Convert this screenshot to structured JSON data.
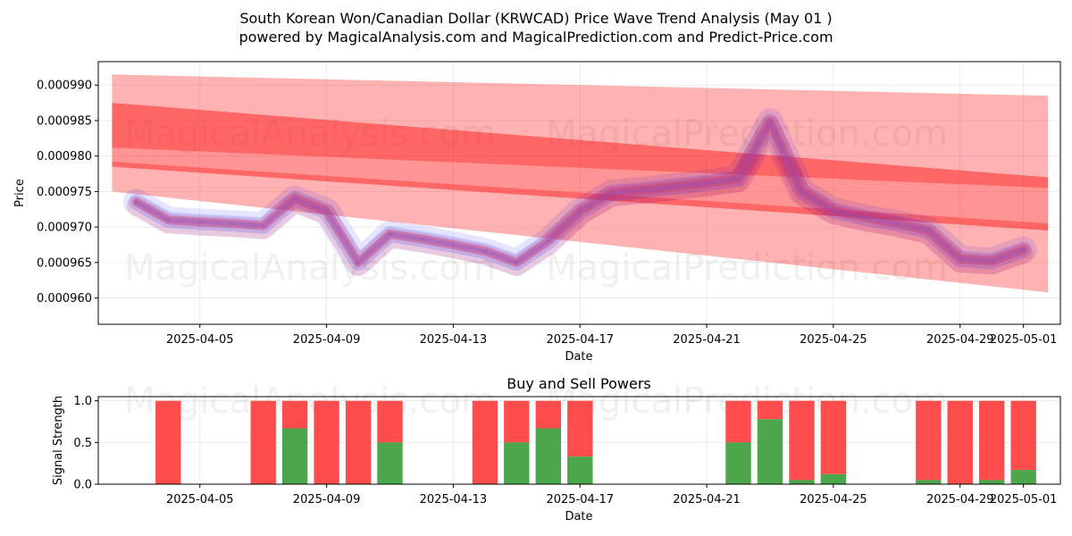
{
  "title_line1": "South Korean Won/Canadian Dollar (KRWCAD) Price Wave Trend Analysis (May 01 )",
  "title_line2": "powered by MagicalAnalysis.com and MagicalPrediction.com and Predict-Price.com",
  "watermarks": [
    "MagicalAnalysis.com",
    "MagicalPrediction.com"
  ],
  "colors": {
    "price_band": "#ff0000",
    "wave_blue": "#0000ff",
    "buy": "#4ca64c",
    "sell": "#ff4c4c"
  },
  "chart_data": [
    {
      "type": "line",
      "title": "",
      "xlabel": "Date",
      "ylabel": "Price",
      "x_ticks": [
        "2025-04-05",
        "2025-04-09",
        "2025-04-13",
        "2025-04-17",
        "2025-04-21",
        "2025-04-25",
        "2025-04-29",
        "2025-05-01"
      ],
      "y_ticks": [
        "0.000960",
        "0.000965",
        "0.000970",
        "0.000975",
        "0.000980",
        "0.000985",
        "0.000990"
      ],
      "ylim": [
        0.0009563,
        0.0009933
      ],
      "xlim": [
        "2025-04-01 19:00",
        "2025-05-02 04:00"
      ],
      "grid": true,
      "series": [
        {
          "dates": [
            "2025-04-03",
            "2025-04-04",
            "2025-04-05",
            "2025-04-06",
            "2025-04-07",
            "2025-04-08",
            "2025-04-09",
            "2025-04-10",
            "2025-04-11",
            "2025-04-12",
            "2025-04-13",
            "2025-04-14",
            "2025-04-15",
            "2025-04-16",
            "2025-04-17",
            "2025-04-18",
            "2025-04-19",
            "2025-04-20",
            "2025-04-21",
            "2025-04-22",
            "2025-04-23",
            "2025-04-24",
            "2025-04-25",
            "2025-04-26",
            "2025-04-27",
            "2025-04-28",
            "2025-04-29",
            "2025-04-30",
            "2025-05-01"
          ],
          "values": [
            0.0009735,
            0.000971,
            0.0009707,
            0.0009705,
            0.0009702,
            0.000974,
            0.0009722,
            0.000965,
            0.000969,
            0.0009683,
            0.0009675,
            0.0009666,
            0.000965,
            0.000968,
            0.0009722,
            0.0009748,
            0.0009752,
            0.0009757,
            0.0009762,
            0.0009768,
            0.0009848,
            0.000975,
            0.0009723,
            0.0009713,
            0.0009705,
            0.0009695,
            0.0009655,
            0.0009652,
            0.0009668
          ]
        }
      ],
      "bands": [
        {
          "start": "2025-04-02",
          "end": "2025-05-02",
          "upper": [
            0.0009915,
            0.0009885
          ],
          "lower": [
            0.0009812,
            0.0009755
          ]
        },
        {
          "start": "2025-04-02",
          "end": "2025-05-02",
          "upper": [
            0.0009875,
            0.000977
          ],
          "lower": [
            0.0009785,
            0.0009695
          ]
        },
        {
          "start": "2025-04-02",
          "end": "2025-05-02",
          "upper": [
            0.0009792,
            0.0009705
          ],
          "lower": [
            0.000975,
            0.0009608
          ]
        }
      ]
    },
    {
      "type": "bar",
      "title": "Buy and Sell Powers",
      "xlabel": "Date",
      "ylabel": "Signal Strength",
      "y_ticks": [
        "0.0",
        "0.5",
        "1.0"
      ],
      "ylim": [
        0,
        1.05
      ],
      "grid": true,
      "bars": [
        {
          "date": "2025-04-04",
          "buy": 0.0
        },
        {
          "date": "2025-04-07",
          "buy": 0.0
        },
        {
          "date": "2025-04-08",
          "buy": 0.67
        },
        {
          "date": "2025-04-09",
          "buy": 0.0
        },
        {
          "date": "2025-04-10",
          "buy": 0.0
        },
        {
          "date": "2025-04-11",
          "buy": 0.5
        },
        {
          "date": "2025-04-14",
          "buy": 0.0
        },
        {
          "date": "2025-04-15",
          "buy": 0.5
        },
        {
          "date": "2025-04-16",
          "buy": 0.67
        },
        {
          "date": "2025-04-17",
          "buy": 0.33
        },
        {
          "date": "2025-04-22",
          "buy": 0.5
        },
        {
          "date": "2025-04-23",
          "buy": 0.78
        },
        {
          "date": "2025-04-24",
          "buy": 0.05
        },
        {
          "date": "2025-04-25",
          "buy": 0.12
        },
        {
          "date": "2025-04-28",
          "buy": 0.05
        },
        {
          "date": "2025-04-29",
          "buy": 0.0
        },
        {
          "date": "2025-04-30",
          "buy": 0.05
        },
        {
          "date": "2025-05-01",
          "buy": 0.17
        }
      ]
    }
  ]
}
